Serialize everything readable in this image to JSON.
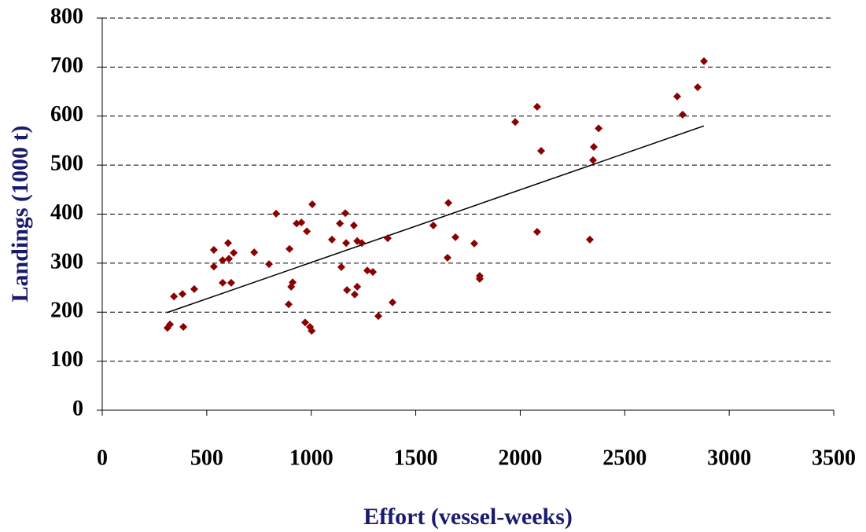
{
  "chart_data": {
    "type": "scatter",
    "x_label": "Effort (vessel-weeks)",
    "y_label": "Landings (1000 t)",
    "xlim": [
      0,
      3500
    ],
    "xticks": [
      0,
      500,
      1000,
      1500,
      2000,
      2500,
      3000,
      3500
    ],
    "ylim": [
      0,
      800
    ],
    "yticks": [
      0,
      100,
      200,
      300,
      400,
      500,
      600,
      700,
      800
    ],
    "grid": true,
    "series": [
      {
        "color": "#8b0000",
        "x": [
          312,
          324,
          343,
          384,
          388,
          440,
          534,
          534,
          576,
          576,
          602,
          606,
          617,
          629,
          727,
          798,
          832,
          892,
          896,
          904,
          911,
          930,
          953,
          971,
          979,
          994,
          1002,
          1005,
          1099,
          1137,
          1144,
          1163,
          1167,
          1171,
          1204,
          1208,
          1220,
          1220,
          1242,
          1268,
          1295,
          1321,
          1366,
          1389,
          1584,
          1652,
          1656,
          1690,
          1780,
          1806,
          1806,
          1976,
          2081,
          2081,
          2100,
          2333,
          2348,
          2352,
          2375,
          2751,
          2777,
          2849,
          2879
        ],
        "values": [
          168,
          175,
          232,
          237,
          170,
          247,
          327,
          293,
          306,
          260,
          341,
          309,
          260,
          321,
          322,
          298,
          401,
          216,
          329,
          252,
          261,
          381,
          383,
          179,
          365,
          170,
          162,
          420,
          348,
          381,
          292,
          402,
          341,
          245,
          377,
          236,
          252,
          345,
          341,
          285,
          282,
          192,
          351,
          220,
          377,
          311,
          423,
          353,
          340,
          274,
          268,
          588,
          619,
          364,
          529,
          348,
          510,
          537,
          575,
          640,
          603,
          659,
          712
        ]
      }
    ],
    "trendline": {
      "color": "#000000",
      "x": [
        309,
        2879
      ],
      "values": [
        199,
        580
      ]
    }
  }
}
